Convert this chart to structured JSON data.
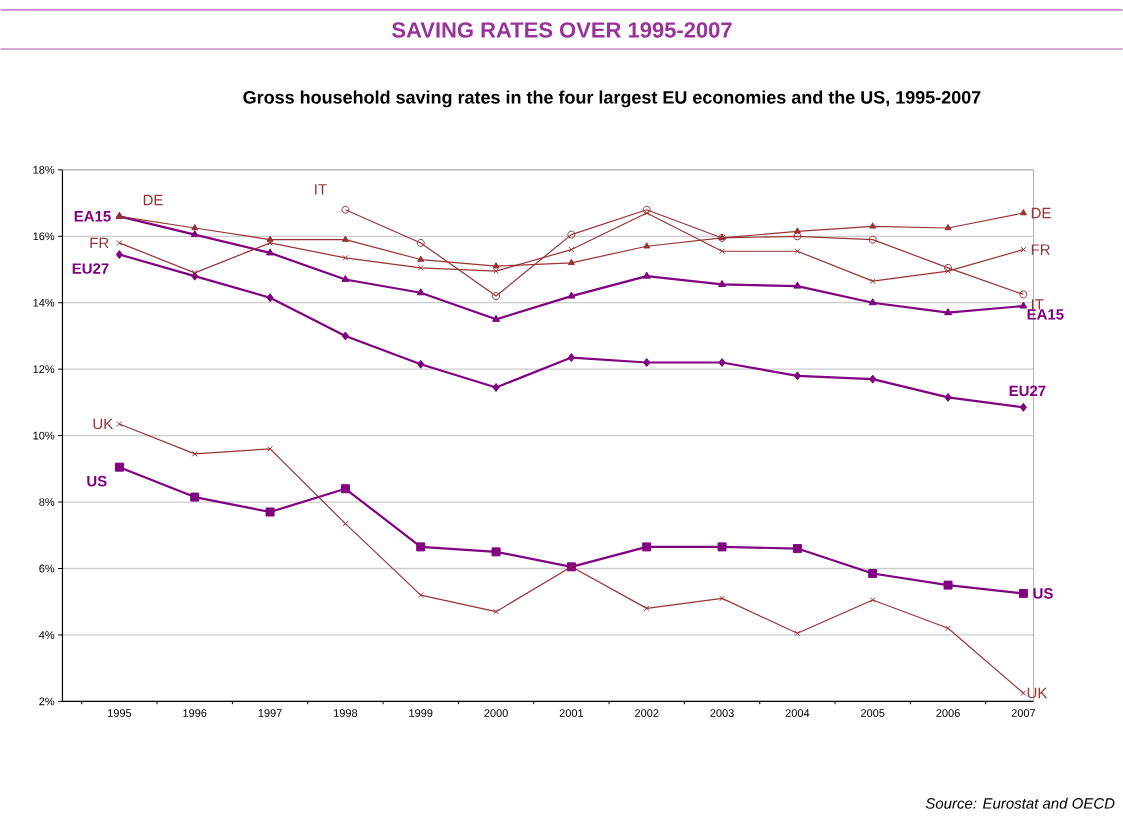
{
  "chart_data": {
    "type": "line",
    "title": "SAVING RATES OVER 1995-2007",
    "subtitle": "Gross household saving rates in the four largest EU economies and the US, 1995-2007",
    "categories": [
      "1995",
      "1996",
      "1997",
      "1998",
      "1999",
      "2000",
      "2001",
      "2002",
      "2003",
      "2004",
      "2005",
      "2006",
      "2007"
    ],
    "series": [
      {
        "name": "EA15",
        "color": "#800080",
        "marker": "triangle",
        "values": [
          16.6,
          16.05,
          15.5,
          14.7,
          14.3,
          13.5,
          14.2,
          14.8,
          14.55,
          14.5,
          14.0,
          13.7,
          13.9
        ]
      },
      {
        "name": "EU27",
        "color": "#800080",
        "marker": "diamond",
        "values": [
          15.45,
          14.8,
          14.15,
          13.0,
          12.15,
          11.45,
          12.35,
          12.2,
          12.2,
          11.8,
          11.7,
          11.15,
          10.85
        ]
      },
      {
        "name": "US",
        "color": "#800080",
        "marker": "square",
        "values": [
          9.05,
          8.15,
          7.7,
          8.4,
          6.65,
          6.5,
          6.05,
          6.65,
          6.65,
          6.6,
          5.85,
          5.5,
          5.25
        ]
      },
      {
        "name": "DE",
        "color": "#993333",
        "marker": "triangle",
        "values": [
          16.6,
          16.25,
          15.9,
          15.9,
          15.3,
          15.1,
          15.2,
          15.7,
          15.95,
          16.15,
          16.3,
          16.25,
          16.7
        ]
      },
      {
        "name": "FR",
        "color": "#993333",
        "marker": "cross",
        "values": [
          15.8,
          14.9,
          15.8,
          15.35,
          15.05,
          14.95,
          15.6,
          16.7,
          15.55,
          15.55,
          14.65,
          14.95,
          15.6
        ]
      },
      {
        "name": "IT",
        "color": "#993333",
        "marker": "circle",
        "values": [
          null,
          null,
          null,
          16.8,
          15.8,
          14.2,
          16.05,
          16.8,
          15.95,
          16.0,
          15.9,
          15.05,
          14.25
        ]
      },
      {
        "name": "UK",
        "color": "#993333",
        "marker": "cross",
        "values": [
          10.35,
          9.45,
          9.6,
          7.35,
          5.2,
          4.7,
          6.05,
          4.8,
          5.1,
          4.05,
          5.05,
          4.2,
          2.25
        ]
      }
    ],
    "ylim": [
      2,
      18
    ],
    "yticks": [
      {
        "value": 2,
        "label": "2%"
      },
      {
        "value": 4,
        "label": "4%"
      },
      {
        "value": 6,
        "label": "6%"
      },
      {
        "value": 8,
        "label": "8%"
      },
      {
        "value": 10,
        "label": "10%"
      },
      {
        "value": 12,
        "label": "12%"
      },
      {
        "value": 14,
        "label": "14%"
      },
      {
        "value": 16,
        "label": "16%"
      },
      {
        "value": 18,
        "label": "18%"
      }
    ],
    "grid": "y",
    "annotations": [
      "Source: Eurostat and OECD"
    ]
  }
}
